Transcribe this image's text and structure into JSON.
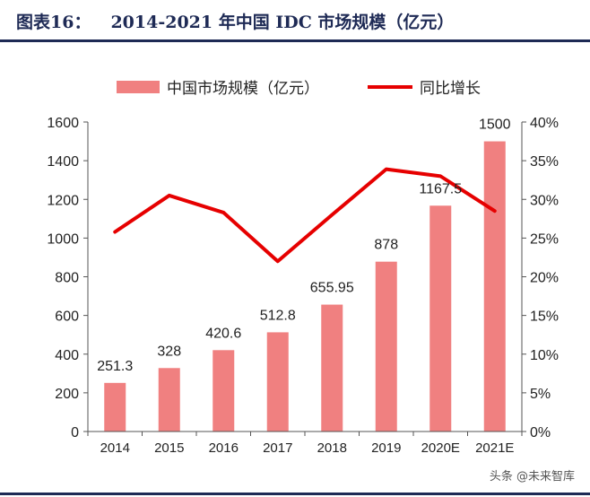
{
  "figure": {
    "label": "图表16：",
    "title": "2014-2021 年中国 IDC 市场规模（亿元）"
  },
  "watermark": "头条 @未来智库",
  "colors": {
    "bar": "#f08080",
    "line": "#e60000",
    "axis": "#555555",
    "title": "#1e2a55"
  },
  "chart_data": {
    "type": "bar",
    "title": "2014-2021 年中国 IDC 市场规模（亿元）",
    "categories": [
      "2014",
      "2015",
      "2016",
      "2017",
      "2018",
      "2019",
      "2020E",
      "2021E"
    ],
    "series": [
      {
        "name": "中国市场规模（亿元）",
        "type": "bar",
        "axis": "left",
        "values": [
          251.3,
          328,
          420.6,
          512.8,
          655.95,
          878,
          1167.5,
          1500
        ],
        "labels": [
          "251.3",
          "328",
          "420.6",
          "512.8",
          "655.95",
          "878",
          "1167.5",
          "1500"
        ]
      },
      {
        "name": "同比增长",
        "type": "line",
        "axis": "right",
        "values": [
          25.8,
          30.5,
          28.3,
          22.0,
          28.0,
          33.9,
          33.0,
          28.5
        ]
      }
    ],
    "y_left": {
      "range": [
        0,
        1600
      ],
      "ticks": [
        "0",
        "200",
        "400",
        "600",
        "800",
        "1000",
        "1200",
        "1400",
        "1600"
      ]
    },
    "y_right": {
      "range": [
        0,
        40
      ],
      "ticks": [
        "0%",
        "5%",
        "10%",
        "15%",
        "20%",
        "25%",
        "30%",
        "35%",
        "40%"
      ]
    },
    "legend": {
      "placement": "top-center"
    },
    "grid": false
  }
}
